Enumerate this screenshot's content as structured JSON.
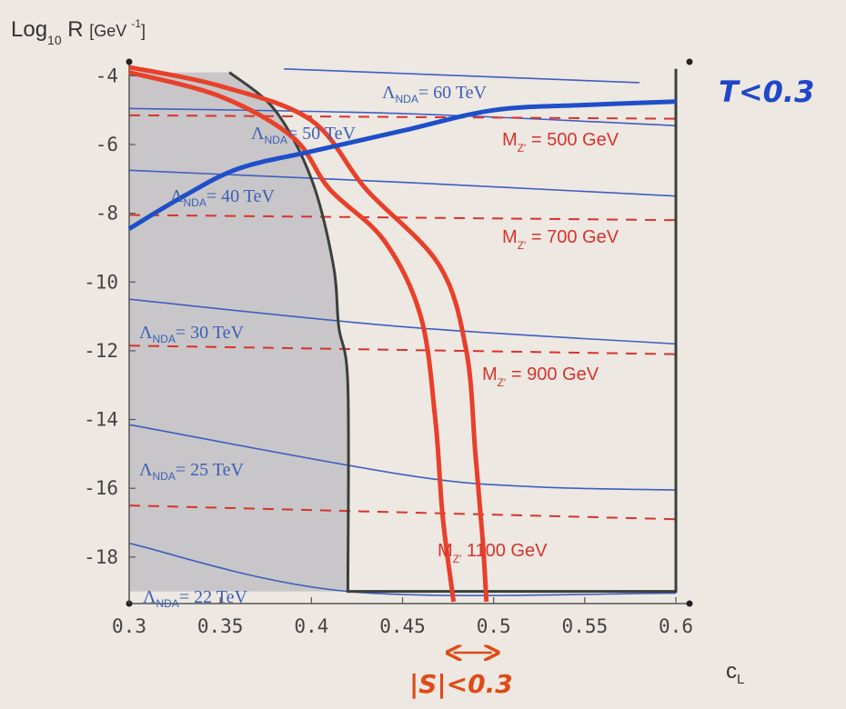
{
  "chart_data": {
    "type": "line",
    "title": "",
    "ylabel": "Log",
    "ylabel_sub": "10",
    "ylabel_rest": " R ",
    "ylabel_unit_pre": "[GeV ",
    "ylabel_unit_sup": "-1",
    "ylabel_unit_post": "]",
    "xlabel_main": "c",
    "xlabel_sub": "L",
    "xlim": [
      0.3,
      0.6
    ],
    "ylim": [
      -19.3,
      -3.7
    ],
    "x_ticks": [
      "0.3",
      "0.35",
      "0.4",
      "0.45",
      "0.5",
      "0.55",
      "0.6"
    ],
    "y_ticks": [
      "-4",
      "-6",
      "-8",
      "-10",
      "-12",
      "-14",
      "-16",
      "-18"
    ],
    "grid": false,
    "excluded_region_color": "#c8c6c8",
    "lambda_nda_lines": [
      {
        "prefix": "Λ",
        "sub": "NDA",
        "value": "= 60 TeV",
        "points": [
          [
            0.385,
            -3.8
          ],
          [
            0.58,
            -4.2
          ]
        ]
      },
      {
        "prefix": "Λ",
        "sub": "NDA",
        "value": "= 50 TeV",
        "points": [
          [
            0.3,
            -4.95
          ],
          [
            0.45,
            -5.1
          ],
          [
            0.6,
            -5.45
          ]
        ]
      },
      {
        "prefix": "Λ",
        "sub": "NDA",
        "value": "= 40 TeV",
        "points": [
          [
            0.3,
            -6.75
          ],
          [
            0.45,
            -7.1
          ],
          [
            0.6,
            -7.5
          ]
        ]
      },
      {
        "prefix": "Λ",
        "sub": "NDA",
        "value": "= 30 TeV",
        "points": [
          [
            0.3,
            -10.5
          ],
          [
            0.45,
            -11.3
          ],
          [
            0.6,
            -11.8
          ]
        ]
      },
      {
        "prefix": "Λ",
        "sub": "NDA",
        "value": "= 25 TeV",
        "points": [
          [
            0.3,
            -14.15
          ],
          [
            0.45,
            -15.6
          ],
          [
            0.52,
            -15.95
          ],
          [
            0.6,
            -16.05
          ]
        ]
      },
      {
        "prefix": "Λ",
        "sub": "NDA",
        "value": "= 22 TeV",
        "points": [
          [
            0.3,
            -17.6
          ],
          [
            0.42,
            -19.0
          ],
          [
            0.6,
            -19.05
          ]
        ]
      }
    ],
    "mz_lines": [
      {
        "prefix": "M",
        "sub": "Z'",
        "value": "= 500 GeV",
        "y": [
          -5.15,
          -5.25
        ]
      },
      {
        "prefix": "M",
        "sub": "Z'",
        "value": "= 700 GeV",
        "y": [
          -8.05,
          -8.2
        ]
      },
      {
        "prefix": "M",
        "sub": "Z'",
        "value": "= 900 GeV",
        "y": [
          -11.85,
          -12.1
        ]
      },
      {
        "prefix": "M",
        "sub": "Z'",
        "value": "1100 GeV",
        "y": [
          -16.5,
          -16.9
        ]
      }
    ],
    "t_parameter_curve": {
      "label": "T<0.3",
      "points": [
        [
          0.3,
          -8.45
        ],
        [
          0.33,
          -7.5
        ],
        [
          0.36,
          -6.7
        ],
        [
          0.4,
          -6.2
        ],
        [
          0.45,
          -5.6
        ],
        [
          0.5,
          -5.0
        ],
        [
          0.55,
          -4.85
        ],
        [
          0.6,
          -4.75
        ]
      ]
    },
    "s_parameter_curves": {
      "label": "|S|<0.3",
      "left": [
        [
          0.3,
          -3.9
        ],
        [
          0.35,
          -4.6
        ],
        [
          0.39,
          -5.8
        ],
        [
          0.41,
          -7.3
        ],
        [
          0.44,
          -8.8
        ],
        [
          0.46,
          -11.0
        ],
        [
          0.468,
          -14.0
        ],
        [
          0.472,
          -16.8
        ],
        [
          0.478,
          -19.3
        ]
      ],
      "right": [
        [
          0.3,
          -3.75
        ],
        [
          0.35,
          -4.3
        ],
        [
          0.4,
          -5.3
        ],
        [
          0.43,
          -7.3
        ],
        [
          0.47,
          -9.5
        ],
        [
          0.485,
          -12.0
        ],
        [
          0.49,
          -15.0
        ],
        [
          0.494,
          -17.5
        ],
        [
          0.496,
          -19.3
        ]
      ]
    },
    "exclusion_boundary": [
      [
        0.355,
        -3.9
      ],
      [
        0.38,
        -5.0
      ],
      [
        0.4,
        -7.0
      ],
      [
        0.412,
        -9.5
      ],
      [
        0.415,
        -11.3
      ],
      [
        0.42,
        -13.0
      ],
      [
        0.42,
        -19.0
      ],
      [
        0.6,
        -19.0
      ],
      [
        0.6,
        -3.8
      ]
    ]
  }
}
